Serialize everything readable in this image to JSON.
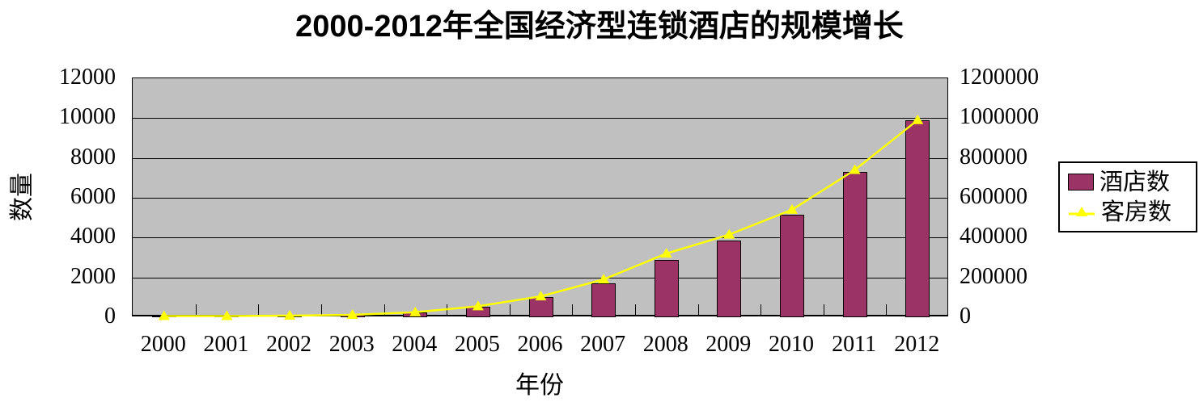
{
  "title": "2000-2012年全国经济型连锁酒店的规模增长",
  "chart_data": {
    "type": "bar",
    "subtype": "combo-bar-line-dual-axis",
    "title": "2000-2012年全国经济型连锁酒店的规模增长",
    "xlabel": "年份",
    "ylabel_left": "数量",
    "categories": [
      "2000",
      "2001",
      "2002",
      "2003",
      "2004",
      "2005",
      "2006",
      "2007",
      "2008",
      "2009",
      "2010",
      "2011",
      "2012"
    ],
    "series": [
      {
        "name": "酒店数",
        "type": "bar",
        "axis": "left",
        "color": "#9C3366",
        "values": [
          50,
          50,
          70,
          110,
          230,
          530,
          1000,
          1720,
          2900,
          3850,
          5150,
          7300,
          9880
        ]
      },
      {
        "name": "客房数",
        "type": "line",
        "axis": "right",
        "color": "#FFFF00",
        "values": [
          3000,
          5000,
          8000,
          12000,
          25000,
          55000,
          105000,
          190000,
          320000,
          415000,
          540000,
          740000,
          990000
        ]
      }
    ],
    "left_axis": {
      "min": 0,
      "max": 12000,
      "step": 2000
    },
    "right_axis": {
      "min": 0,
      "max": 1200000,
      "step": 200000
    },
    "grid": true,
    "plot_background": "#C0C0C0",
    "legend_position": "middle-right",
    "marker_shape": "triangle-up"
  }
}
